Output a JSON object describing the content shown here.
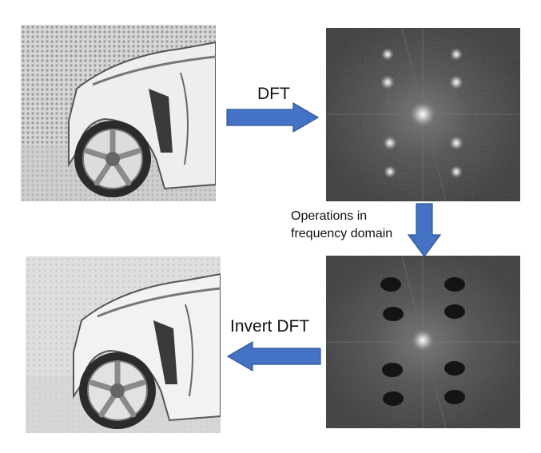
{
  "labels": {
    "dft": "DFT",
    "operations_line1": "Operations in",
    "operations_line2": "frequency domain",
    "invert_dft": "Invert DFT"
  },
  "colors": {
    "arrow_fill": "#4472C4",
    "arrow_stroke": "#2F5597",
    "spectrum_bg": "#3a3a3a",
    "notch_spot": "#141414"
  }
}
